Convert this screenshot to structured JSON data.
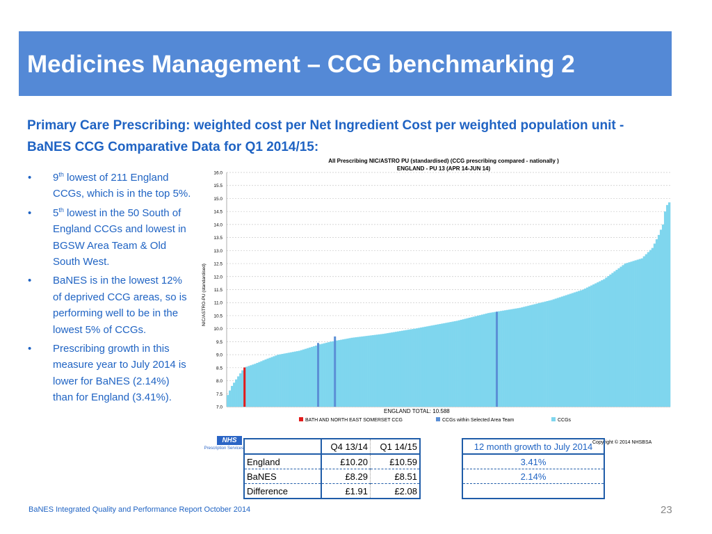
{
  "slide": {
    "title": "Medicines Management – CCG benchmarking 2",
    "subtitle": "Primary Care Prescribing: weighted cost per Net Ingredient Cost per weighted population unit - BaNES CCG Comparative Data for Q1 2014/15:",
    "footer": "BaNES Integrated Quality and Performance Report October 2014",
    "page_number": "23"
  },
  "bullets": [
    {
      "marker": "•",
      "pre": "9",
      "sup": "th",
      "post": " lowest  of 211 England CCGs, which is in the top 5%."
    },
    {
      "marker": "•",
      "pre": "5",
      "sup": "th",
      "post": " lowest in the 50 South of England CCGs and lowest in BGSW Area Team & Old South West."
    },
    {
      "marker": "•",
      "pre": "",
      "sup": "",
      "post": "BaNES is in the lowest 12% of deprived CCG areas, so is performing well to be in the lowest 5% of CCGs."
    },
    {
      "marker": "•",
      "pre": "",
      "sup": "",
      "post": "Prescribing growth in this measure year to July 2014 is lower for BaNES (2.14%) than for England (3.41%)."
    }
  ],
  "logo": {
    "nhs": "NHS",
    "sub": "Prescription Services"
  },
  "cost_table": {
    "headers": [
      "",
      "Q4 13/14",
      "Q1 14/15"
    ],
    "rows": [
      [
        "England",
        "£10.20",
        "£10.59"
      ],
      [
        "BaNES",
        "£8.29",
        "£8.51"
      ],
      [
        "Difference",
        "£1.91",
        "£2.08"
      ]
    ]
  },
  "growth_table": {
    "header": "12 month growth to July 2014",
    "values": [
      "3.41%",
      "2.14%",
      ""
    ]
  },
  "chart_data": {
    "type": "bar",
    "title": "All Prescribing NIC/ASTRO PU (standardised)  (CCG prescribing compared - nationally )",
    "subtitle": "ENGLAND - PU 13  (APR 14-JUN 14)",
    "ylabel": "NIC/ASTRO-PU (standardised)",
    "ylim": [
      7.0,
      16.0
    ],
    "yticks": [
      "7.0",
      "7.5",
      "8.0",
      "8.5",
      "9.0",
      "9.5",
      "10.0",
      "10.5",
      "11.0",
      "11.5",
      "12.0",
      "12.5",
      "13.0",
      "13.5",
      "14.0",
      "14.5",
      "15.0",
      "15.5",
      "16.0"
    ],
    "annotation": "ENGLAND TOTAL: 10.588",
    "copyright": "Copyright  © 2014 NHSBSA",
    "n_ccgs": 211,
    "curve_points": [
      {
        "rank": 1,
        "value": 7.45
      },
      {
        "rank": 3,
        "value": 7.8
      },
      {
        "rank": 5,
        "value": 8.05
      },
      {
        "rank": 8,
        "value": 8.4
      },
      {
        "rank": 9,
        "value": 8.51
      },
      {
        "rank": 14,
        "value": 8.65
      },
      {
        "rank": 20,
        "value": 8.85
      },
      {
        "rank": 25,
        "value": 9.0
      },
      {
        "rank": 35,
        "value": 9.15
      },
      {
        "rank": 45,
        "value": 9.4
      },
      {
        "rank": 50,
        "value": 9.5
      },
      {
        "rank": 60,
        "value": 9.65
      },
      {
        "rank": 75,
        "value": 9.8
      },
      {
        "rank": 90,
        "value": 10.0
      },
      {
        "rank": 110,
        "value": 10.3
      },
      {
        "rank": 125,
        "value": 10.6
      },
      {
        "rank": 140,
        "value": 10.8
      },
      {
        "rank": 155,
        "value": 11.1
      },
      {
        "rank": 170,
        "value": 11.5
      },
      {
        "rank": 180,
        "value": 11.9
      },
      {
        "rank": 190,
        "value": 12.5
      },
      {
        "rank": 198,
        "value": 12.7
      },
      {
        "rank": 203,
        "value": 13.1
      },
      {
        "rank": 206,
        "value": 13.6
      },
      {
        "rank": 208,
        "value": 14.0
      },
      {
        "rank": 209,
        "value": 14.5
      },
      {
        "rank": 210,
        "value": 14.75
      },
      {
        "rank": 211,
        "value": 14.85
      }
    ],
    "highlighted": [
      {
        "series": "BATH AND NORTH EAST SOMERSET CCG",
        "rank": 9,
        "value": 8.51,
        "color": "#e21b1b"
      },
      {
        "series": "CCGs within Selected Area Team",
        "rank": 44,
        "value": 9.45,
        "color": "#5b8fd6"
      },
      {
        "series": "CCGs within Selected Area Team",
        "rank": 52,
        "value": 9.7,
        "color": "#5b8fd6"
      },
      {
        "series": "CCGs within Selected Area Team",
        "rank": 129,
        "value": 10.65,
        "color": "#5b8fd6"
      }
    ],
    "legend": [
      {
        "label": "BATH AND NORTH EAST SOMERSET CCG",
        "color": "#e21b1b"
      },
      {
        "label": "CCGs within Selected Area Team",
        "color": "#5b8fd6"
      },
      {
        "label": "CCGs",
        "color": "#7fd6ee"
      }
    ],
    "legend_position": "bottom",
    "grid": true
  },
  "colors": {
    "banner": "#5489d6",
    "text_blue": "#1f63c3",
    "bar": "#7fd6ee"
  }
}
